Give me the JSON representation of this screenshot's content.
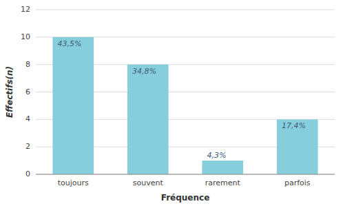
{
  "chart_data": {
    "type": "bar",
    "categories": [
      "toujours",
      "souvent",
      "rarement",
      "parfois"
    ],
    "values": [
      10,
      8,
      1,
      4
    ],
    "annotations": [
      "43,5%",
      "34,8%",
      "4,3%",
      "17,4%"
    ],
    "color": "#87CEDC",
    "x_label": "Fréquence",
    "y_label": "Effectifs(n)",
    "ylim": [
      0,
      12
    ],
    "yticks": [
      0,
      2,
      4,
      6,
      8,
      10,
      12
    ],
    "grid": true
  }
}
